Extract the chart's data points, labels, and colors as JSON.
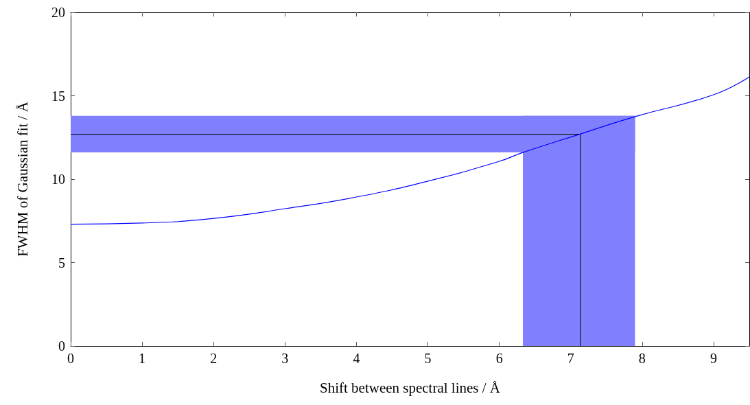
{
  "chart_data": {
    "type": "line",
    "xlabel": "Shift between spectral lines / Å",
    "ylabel": "FWHM of Gaussian fit / Å",
    "xlim": [
      0,
      9.5
    ],
    "xticks": [
      0,
      1,
      2,
      3,
      4,
      5,
      6,
      7,
      8,
      9
    ],
    "ylim": [
      0,
      20
    ],
    "yticks": [
      0,
      5,
      10,
      15,
      20
    ],
    "grid": false,
    "marker": "none",
    "line_style": "solid",
    "series": [
      {
        "color": "#0000ff",
        "x": [
          0,
          1,
          2,
          3,
          4,
          5,
          6,
          6.33,
          7.13,
          7.9,
          9,
          9.5
        ],
        "values": [
          7.3,
          7.37,
          7.65,
          8.23,
          8.93,
          9.88,
          11.07,
          11.6,
          12.7,
          13.75,
          15.06,
          16.13
        ]
      }
    ],
    "bands": [
      {
        "axis": "x",
        "from": 6.33,
        "to": 7.9,
        "color": "#8080ff"
      },
      {
        "axis": "y",
        "from": 11.6,
        "to": 13.8,
        "color": "#8080ff"
      }
    ],
    "ref_lines": [
      {
        "axis": "x",
        "value": 7.13,
        "color": "#000000"
      },
      {
        "axis": "y",
        "value": 12.7,
        "color": "#000000"
      }
    ]
  }
}
